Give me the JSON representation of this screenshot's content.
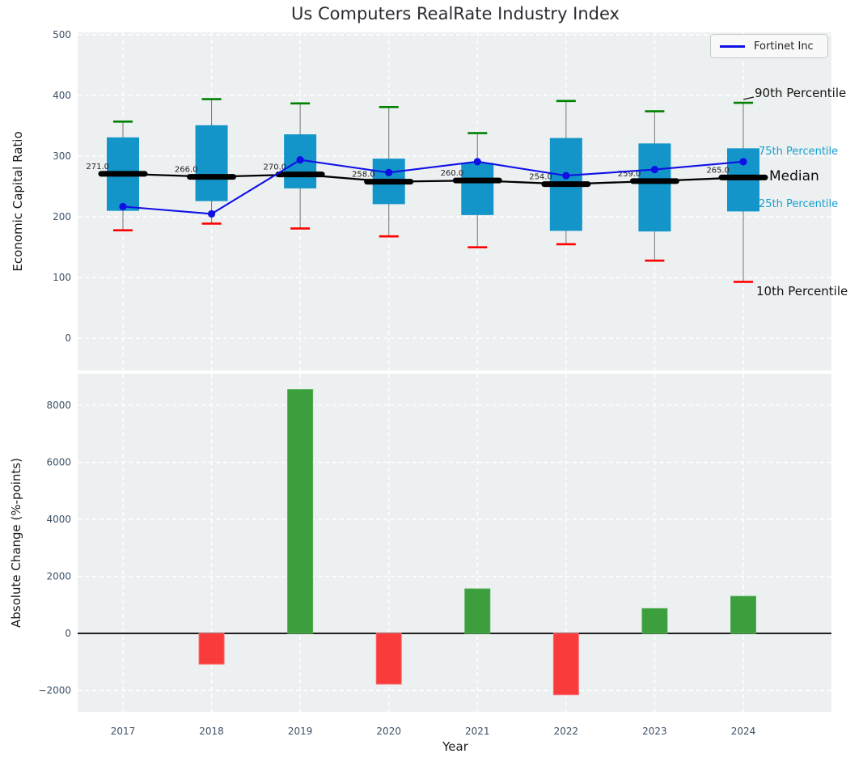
{
  "title": "Us Computers RealRate Industry Index",
  "legend": {
    "label": "Fortinet Inc"
  },
  "annotations": {
    "p90": "90th Percentile",
    "p75": "75th Percentile",
    "median": "Median",
    "p25": "25th Percentile",
    "p10": "10th Percentile"
  },
  "colors": {
    "axes_background": "#edf0f1",
    "grid": "#ffffff",
    "box_fill": "#1395c9",
    "whisker": "#7f7f7f",
    "cap_high": "#008000",
    "cap_low": "#ff0000",
    "median_line": "#000000",
    "fortinet_line": "#1010e6",
    "bar_positive": "#3d9e3d",
    "bar_negative": "#fa3b3b",
    "tick_label": "#3d5166",
    "percentile_label_cyan": "#18a0d0",
    "annotation_text": "#1f1f1f"
  },
  "chart_data": [
    {
      "type": "boxplot_with_line",
      "title": "Us Computers RealRate Industry Index",
      "ylabel": "Economic Capital Ratio",
      "yticks": [
        0,
        100,
        200,
        300,
        400,
        500
      ],
      "ylim": [
        -53,
        504
      ],
      "grid": true,
      "legend_position": "upper right",
      "categories": [
        "2017",
        "2018",
        "2019",
        "2020",
        "2021",
        "2022",
        "2023",
        "2024"
      ],
      "series": [
        {
          "name": "90th Percentile",
          "values": [
            357,
            394,
            387,
            381,
            338,
            391,
            374,
            388
          ]
        },
        {
          "name": "75th Percentile",
          "values": [
            331,
            351,
            336,
            296,
            289,
            330,
            321,
            313
          ]
        },
        {
          "name": "Median",
          "values": [
            271,
            266,
            270,
            258,
            260,
            254,
            259,
            265
          ]
        },
        {
          "name": "25th Percentile",
          "values": [
            210,
            226,
            247,
            221,
            203,
            177,
            176,
            209
          ]
        },
        {
          "name": "10th Percentile",
          "values": [
            178,
            189,
            181,
            168,
            150,
            155,
            128,
            93
          ]
        },
        {
          "name": "Fortinet Inc",
          "values": [
            217,
            205,
            294,
            273,
            291,
            268,
            278,
            291
          ]
        }
      ],
      "median_labels": [
        "271.0",
        "266.0",
        "270.0",
        "258.0",
        "260.0",
        "254.0",
        "259.0",
        "265.0"
      ]
    },
    {
      "type": "bar",
      "ylabel": "Absolute Change (%-points)",
      "xlabel": "Year",
      "yticks": [
        -2000,
        0,
        2000,
        4000,
        6000,
        8000
      ],
      "ylim": [
        -2752,
        9106
      ],
      "grid": true,
      "categories": [
        "2017",
        "2018",
        "2019",
        "2020",
        "2021",
        "2022",
        "2023",
        "2024"
      ],
      "values": [
        0,
        -1080,
        8550,
        -1780,
        1560,
        -2150,
        870,
        1300
      ]
    }
  ]
}
